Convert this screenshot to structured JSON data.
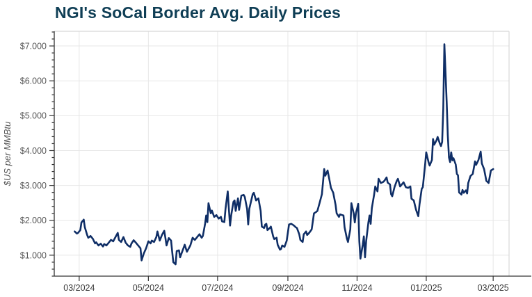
{
  "colors": {
    "title": "#0f3e55",
    "line": "#0f2e66",
    "grid": "#e7e7e7",
    "border": "#d8d8d8",
    "axis": "#333333",
    "y_tick_label": "#575757",
    "x_tick_label": "#3a3a3a",
    "background": "#ffffff"
  },
  "chart_data": {
    "type": "line",
    "title": "NGI's SoCal Border Avg. Daily Prices",
    "xlabel": "",
    "ylabel": "$US per MMBtu",
    "grid": true,
    "legend": false,
    "ylim": [
      0.4,
      7.42
    ],
    "xlim": [
      "2024-02-08",
      "2025-03-15"
    ],
    "y_ticks": [
      [
        1,
        "$1.000"
      ],
      [
        2,
        "$2.000"
      ],
      [
        3,
        "$3.000"
      ],
      [
        4,
        "$4.000"
      ],
      [
        5,
        "$5.000"
      ],
      [
        6,
        "$6.000"
      ],
      [
        7,
        "$7.000"
      ]
    ],
    "y_minor_step": 0.2,
    "x_ticks": [
      [
        "2024-03-01",
        "03/2024"
      ],
      [
        "2024-05-01",
        "05/2024"
      ],
      [
        "2024-07-01",
        "07/2024"
      ],
      [
        "2024-09-01",
        "09/2024"
      ],
      [
        "2024-11-01",
        "11/2024"
      ],
      [
        "2025-01-01",
        "01/2025"
      ],
      [
        "2025-03-01",
        "03/2025"
      ]
    ],
    "points": [
      [
        "2024-02-26",
        1.68
      ],
      [
        "2024-02-28",
        1.62
      ],
      [
        "2024-02-29",
        1.64
      ],
      [
        "2024-03-02",
        1.72
      ],
      [
        "2024-03-03",
        1.94
      ],
      [
        "2024-03-05",
        2.02
      ],
      [
        "2024-03-06",
        1.8
      ],
      [
        "2024-03-08",
        1.58
      ],
      [
        "2024-03-09",
        1.5
      ],
      [
        "2024-03-11",
        1.55
      ],
      [
        "2024-03-13",
        1.47
      ],
      [
        "2024-03-15",
        1.34
      ],
      [
        "2024-03-16",
        1.37
      ],
      [
        "2024-03-18",
        1.28
      ],
      [
        "2024-03-20",
        1.33
      ],
      [
        "2024-03-22",
        1.25
      ],
      [
        "2024-03-23",
        1.32
      ],
      [
        "2024-03-25",
        1.28
      ],
      [
        "2024-03-27",
        1.36
      ],
      [
        "2024-03-29",
        1.44
      ],
      [
        "2024-03-31",
        1.4
      ],
      [
        "2024-04-02",
        1.52
      ],
      [
        "2024-04-04",
        1.64
      ],
      [
        "2024-04-05",
        1.44
      ],
      [
        "2024-04-07",
        1.38
      ],
      [
        "2024-04-09",
        1.52
      ],
      [
        "2024-04-11",
        1.36
      ],
      [
        "2024-04-13",
        1.28
      ],
      [
        "2024-04-15",
        1.24
      ],
      [
        "2024-04-16",
        1.33
      ],
      [
        "2024-04-18",
        1.43
      ],
      [
        "2024-04-20",
        1.36
      ],
      [
        "2024-04-22",
        1.28
      ],
      [
        "2024-04-24",
        1.2
      ],
      [
        "2024-04-25",
        0.85
      ],
      [
        "2024-04-27",
        1.05
      ],
      [
        "2024-04-29",
        1.2
      ],
      [
        "2024-05-01",
        1.4
      ],
      [
        "2024-05-03",
        1.34
      ],
      [
        "2024-05-04",
        1.42
      ],
      [
        "2024-05-06",
        1.38
      ],
      [
        "2024-05-08",
        1.52
      ],
      [
        "2024-05-09",
        1.68
      ],
      [
        "2024-05-11",
        1.42
      ],
      [
        "2024-05-13",
        1.58
      ],
      [
        "2024-05-15",
        1.7
      ],
      [
        "2024-05-16",
        1.5
      ],
      [
        "2024-05-17",
        1.28
      ],
      [
        "2024-05-19",
        1.49
      ],
      [
        "2024-05-21",
        1.42
      ],
      [
        "2024-05-22",
        1.1
      ],
      [
        "2024-05-23",
        0.8
      ],
      [
        "2024-05-25",
        0.74
      ],
      [
        "2024-05-26",
        1.12
      ],
      [
        "2024-05-28",
        1.14
      ],
      [
        "2024-05-29",
        0.94
      ],
      [
        "2024-05-31",
        1.12
      ],
      [
        "2024-06-02",
        1.3
      ],
      [
        "2024-06-04",
        1.1
      ],
      [
        "2024-06-06",
        1.22
      ],
      [
        "2024-06-07",
        1.28
      ],
      [
        "2024-06-09",
        1.5
      ],
      [
        "2024-06-11",
        1.44
      ],
      [
        "2024-06-13",
        1.52
      ],
      [
        "2024-06-15",
        1.6
      ],
      [
        "2024-06-17",
        1.5
      ],
      [
        "2024-06-18",
        1.55
      ],
      [
        "2024-06-20",
        1.9
      ],
      [
        "2024-06-21",
        2.14
      ],
      [
        "2024-06-22",
        1.95
      ],
      [
        "2024-06-23",
        2.49
      ],
      [
        "2024-06-25",
        2.2
      ],
      [
        "2024-06-26",
        2.28
      ],
      [
        "2024-06-28",
        2.1
      ],
      [
        "2024-06-30",
        2.15
      ],
      [
        "2024-07-02",
        2.05
      ],
      [
        "2024-07-04",
        2.1
      ],
      [
        "2024-07-05",
        1.97
      ],
      [
        "2024-07-07",
        1.95
      ],
      [
        "2024-07-08",
        2.33
      ],
      [
        "2024-07-10",
        2.83
      ],
      [
        "2024-07-11",
        2.3
      ],
      [
        "2024-07-12",
        1.85
      ],
      [
        "2024-07-13",
        2.14
      ],
      [
        "2024-07-15",
        2.53
      ],
      [
        "2024-07-16",
        2.57
      ],
      [
        "2024-07-17",
        2.27
      ],
      [
        "2024-07-19",
        2.63
      ],
      [
        "2024-07-20",
        2.3
      ],
      [
        "2024-07-22",
        2.71
      ],
      [
        "2024-07-24",
        2.73
      ],
      [
        "2024-07-25",
        2.67
      ],
      [
        "2024-07-27",
        2.33
      ],
      [
        "2024-07-28",
        1.88
      ],
      [
        "2024-07-29",
        2.33
      ],
      [
        "2024-08-01",
        2.75
      ],
      [
        "2024-08-02",
        2.79
      ],
      [
        "2024-08-04",
        2.57
      ],
      [
        "2024-08-05",
        2.6
      ],
      [
        "2024-08-06",
        2.63
      ],
      [
        "2024-08-08",
        2.27
      ],
      [
        "2024-08-09",
        1.82
      ],
      [
        "2024-08-11",
        1.78
      ],
      [
        "2024-08-12",
        1.88
      ],
      [
        "2024-08-13",
        1.9
      ],
      [
        "2024-08-14",
        1.72
      ],
      [
        "2024-08-16",
        1.78
      ],
      [
        "2024-08-17",
        1.82
      ],
      [
        "2024-08-19",
        1.54
      ],
      [
        "2024-08-20",
        1.46
      ],
      [
        "2024-08-22",
        1.5
      ],
      [
        "2024-08-23",
        1.3
      ],
      [
        "2024-08-25",
        1.16
      ],
      [
        "2024-08-26",
        1.18
      ],
      [
        "2024-08-27",
        1.28
      ],
      [
        "2024-08-29",
        1.24
      ],
      [
        "2024-08-31",
        1.42
      ],
      [
        "2024-09-02",
        1.88
      ],
      [
        "2024-09-04",
        1.9
      ],
      [
        "2024-09-06",
        1.86
      ],
      [
        "2024-09-08",
        1.8
      ],
      [
        "2024-09-09",
        1.78
      ],
      [
        "2024-09-11",
        1.6
      ],
      [
        "2024-09-12",
        1.44
      ],
      [
        "2024-09-14",
        1.38
      ],
      [
        "2024-09-15",
        1.6
      ],
      [
        "2024-09-17",
        1.68
      ],
      [
        "2024-09-18",
        1.58
      ],
      [
        "2024-09-20",
        1.65
      ],
      [
        "2024-09-22",
        1.74
      ],
      [
        "2024-09-24",
        2.2
      ],
      [
        "2024-09-26",
        2.24
      ],
      [
        "2024-09-27",
        2.27
      ],
      [
        "2024-09-29",
        2.5
      ],
      [
        "2024-10-01",
        2.75
      ],
      [
        "2024-10-03",
        3.47
      ],
      [
        "2024-10-04",
        3.28
      ],
      [
        "2024-10-06",
        3.43
      ],
      [
        "2024-10-08",
        3.1
      ],
      [
        "2024-10-09",
        2.93
      ],
      [
        "2024-10-11",
        2.79
      ],
      [
        "2024-10-13",
        2.45
      ],
      [
        "2024-10-14",
        2.2
      ],
      [
        "2024-10-16",
        2.1
      ],
      [
        "2024-10-17",
        2.17
      ],
      [
        "2024-10-19",
        2.15
      ],
      [
        "2024-10-20",
        2.14
      ],
      [
        "2024-10-21",
        1.8
      ],
      [
        "2024-10-23",
        1.48
      ],
      [
        "2024-10-24",
        1.38
      ],
      [
        "2024-10-26",
        1.74
      ],
      [
        "2024-10-27",
        2.49
      ],
      [
        "2024-10-29",
        2.2
      ],
      [
        "2024-10-30",
        1.94
      ],
      [
        "2024-10-31",
        2.2
      ],
      [
        "2024-11-02",
        2.47
      ],
      [
        "2024-11-03",
        1.4
      ],
      [
        "2024-11-04",
        0.9
      ],
      [
        "2024-11-06",
        1.3
      ],
      [
        "2024-11-07",
        1.54
      ],
      [
        "2024-11-08",
        0.94
      ],
      [
        "2024-11-09",
        1.4
      ],
      [
        "2024-11-11",
        1.95
      ],
      [
        "2024-11-12",
        2.14
      ],
      [
        "2024-11-13",
        1.9
      ],
      [
        "2024-11-14",
        2.35
      ],
      [
        "2024-11-16",
        2.73
      ],
      [
        "2024-11-17",
        2.97
      ],
      [
        "2024-11-19",
        2.83
      ],
      [
        "2024-11-20",
        3.19
      ],
      [
        "2024-11-22",
        3.07
      ],
      [
        "2024-11-24",
        3.1
      ],
      [
        "2024-11-25",
        3.13
      ],
      [
        "2024-11-27",
        3.23
      ],
      [
        "2024-11-28",
        3.08
      ],
      [
        "2024-11-30",
        3.03
      ],
      [
        "2024-12-01",
        2.75
      ],
      [
        "2024-12-02",
        2.69
      ],
      [
        "2024-12-04",
        2.95
      ],
      [
        "2024-12-06",
        3.13
      ],
      [
        "2024-12-07",
        3.19
      ],
      [
        "2024-12-09",
        2.97
      ],
      [
        "2024-12-11",
        3.05
      ],
      [
        "2024-12-12",
        3.09
      ],
      [
        "2024-12-14",
        2.95
      ],
      [
        "2024-12-16",
        2.93
      ],
      [
        "2024-12-18",
        2.97
      ],
      [
        "2024-12-19",
        2.62
      ],
      [
        "2024-12-21",
        2.57
      ],
      [
        "2024-12-23",
        2.3
      ],
      [
        "2024-12-25",
        2.12
      ],
      [
        "2024-12-26",
        2.45
      ],
      [
        "2024-12-28",
        2.9
      ],
      [
        "2024-12-29",
        2.95
      ],
      [
        "2024-12-31",
        3.6
      ],
      [
        "2025-01-01",
        3.95
      ],
      [
        "2025-01-03",
        3.67
      ],
      [
        "2025-01-04",
        3.57
      ],
      [
        "2025-01-06",
        3.73
      ],
      [
        "2025-01-07",
        4.33
      ],
      [
        "2025-01-08",
        4.17
      ],
      [
        "2025-01-10",
        4.29
      ],
      [
        "2025-01-11",
        4.39
      ],
      [
        "2025-01-13",
        4.2
      ],
      [
        "2025-01-14",
        4.13
      ],
      [
        "2025-01-15",
        4.25
      ],
      [
        "2025-01-16",
        5.2
      ],
      [
        "2025-01-17",
        7.05
      ],
      [
        "2025-01-19",
        5.4
      ],
      [
        "2025-01-20",
        4.45
      ],
      [
        "2025-01-21",
        3.8
      ],
      [
        "2025-01-22",
        3.67
      ],
      [
        "2025-01-23",
        3.95
      ],
      [
        "2025-01-24",
        3.72
      ],
      [
        "2025-01-25",
        3.78
      ],
      [
        "2025-01-27",
        3.6
      ],
      [
        "2025-01-28",
        3.33
      ],
      [
        "2025-01-29",
        3.29
      ],
      [
        "2025-01-30",
        2.8
      ],
      [
        "2025-02-01",
        2.74
      ],
      [
        "2025-02-02",
        2.87
      ],
      [
        "2025-02-03",
        2.79
      ],
      [
        "2025-02-05",
        2.86
      ],
      [
        "2025-02-06",
        2.77
      ],
      [
        "2025-02-07",
        3.07
      ],
      [
        "2025-02-09",
        3.27
      ],
      [
        "2025-02-11",
        3.33
      ],
      [
        "2025-02-13",
        3.69
      ],
      [
        "2025-02-14",
        3.59
      ],
      [
        "2025-02-16",
        3.73
      ],
      [
        "2025-02-18",
        3.97
      ],
      [
        "2025-02-19",
        3.63
      ],
      [
        "2025-02-21",
        3.47
      ],
      [
        "2025-02-23",
        3.13
      ],
      [
        "2025-02-25",
        3.07
      ],
      [
        "2025-02-27",
        3.43
      ],
      [
        "2025-03-01",
        3.47
      ]
    ]
  }
}
